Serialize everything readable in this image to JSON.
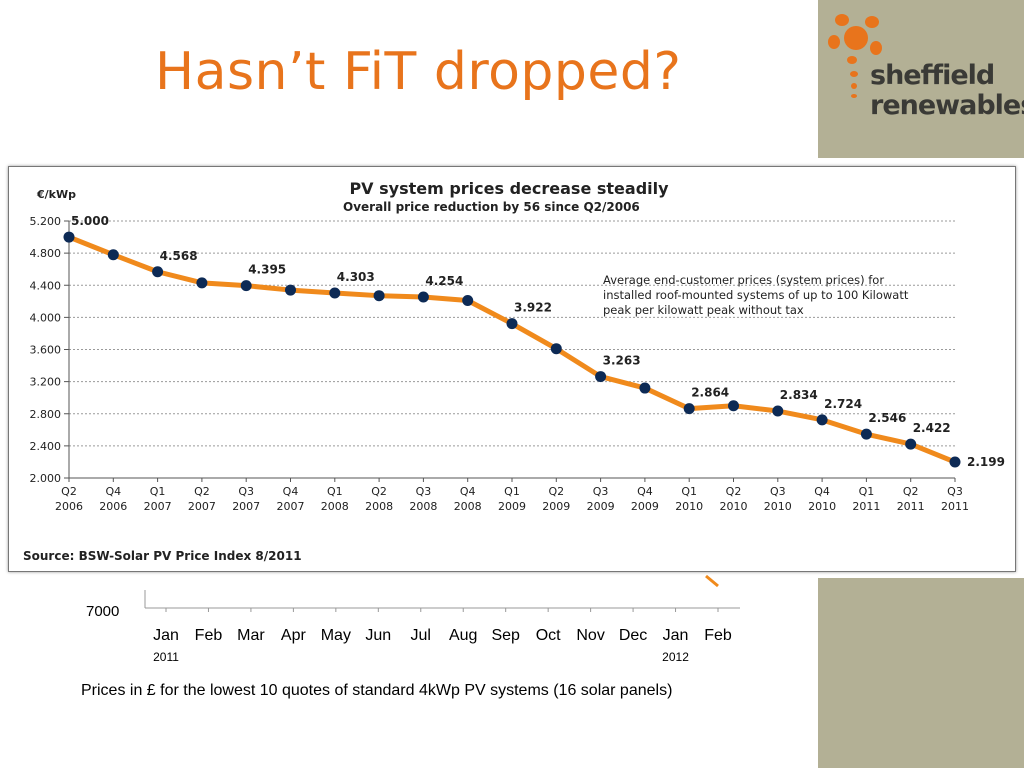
{
  "slide": {
    "title": "Hasn’t FiT dropped?",
    "accent_color": "#e8741c"
  },
  "logo": {
    "line1": "sheffield",
    "line2": "renewables",
    "icon": "sun-flower-icon",
    "icon_color": "#e8741c"
  },
  "chart_data": [
    {
      "type": "line",
      "title": "PV system prices decrease steadily",
      "subtitle": "Overall price reduction by 56  since Q2/2006",
      "ylabel": "€/kWp",
      "xlabel": "",
      "ylim": [
        2.0,
        5.2
      ],
      "yticks": [
        "2.000",
        "2.400",
        "2.800",
        "3.200",
        "3.600",
        "4.000",
        "4.400",
        "4.800",
        "5.200"
      ],
      "grid": true,
      "categories": [
        [
          "Q2",
          "2006"
        ],
        [
          "Q4",
          "2006"
        ],
        [
          "Q1",
          "2007"
        ],
        [
          "Q2",
          "2007"
        ],
        [
          "Q3",
          "2007"
        ],
        [
          "Q4",
          "2007"
        ],
        [
          "Q1",
          "2008"
        ],
        [
          "Q2",
          "2008"
        ],
        [
          "Q3",
          "2008"
        ],
        [
          "Q4",
          "2008"
        ],
        [
          "Q1",
          "2009"
        ],
        [
          "Q2",
          "2009"
        ],
        [
          "Q3",
          "2009"
        ],
        [
          "Q4",
          "2009"
        ],
        [
          "Q1",
          "2010"
        ],
        [
          "Q2",
          "2010"
        ],
        [
          "Q3",
          "2010"
        ],
        [
          "Q4",
          "2010"
        ],
        [
          "Q1",
          "2011"
        ],
        [
          "Q2",
          "2011"
        ],
        [
          "Q3",
          "2011"
        ]
      ],
      "series": [
        {
          "values": [
            5.0,
            4.78,
            4.568,
            4.43,
            4.395,
            4.34,
            4.303,
            4.27,
            4.254,
            4.21,
            3.922,
            3.61,
            3.263,
            3.12,
            2.864,
            2.9,
            2.834,
            2.724,
            2.546,
            2.422,
            2.199
          ],
          "color": "#f08a1c",
          "marker_color": "#0d2a55"
        }
      ],
      "data_labels": [
        {
          "index": 0,
          "text": "5.000"
        },
        {
          "index": 2,
          "text": "4.568"
        },
        {
          "index": 4,
          "text": "4.395"
        },
        {
          "index": 6,
          "text": "4.303"
        },
        {
          "index": 8,
          "text": "4.254"
        },
        {
          "index": 10,
          "text": "3.922"
        },
        {
          "index": 12,
          "text": "3.263"
        },
        {
          "index": 14,
          "text": "2.864"
        },
        {
          "index": 16,
          "text": "2.834"
        },
        {
          "index": 17,
          "text": "2.724"
        },
        {
          "index": 18,
          "text": "2.546"
        },
        {
          "index": 19,
          "text": "2.422"
        },
        {
          "index": 20,
          "text": "2.199"
        }
      ],
      "annotation": [
        "Average end-customer prices (system prices) for",
        "installed roof-mounted systems of up to 100 Kilowatt",
        "peak per kilowatt peak without tax"
      ],
      "source": "Source: BSW-Solar  PV Price Index 8/2011"
    },
    {
      "type": "line",
      "title": "",
      "ytick_visible": "7000",
      "categories": [
        "Jan",
        "Feb",
        "Mar",
        "Apr",
        "May",
        "Jun",
        "Jul",
        "Aug",
        "Sep",
        "Oct",
        "Nov",
        "Dec",
        "Jan",
        "Feb"
      ],
      "year_labels": [
        {
          "index": 0,
          "text": "2011"
        },
        {
          "index": 12,
          "text": "2012"
        }
      ],
      "caption": "Prices in £ for the lowest 10 quotes of standard 4kWp PV systems (16 solar panels)",
      "line_color": "#f08a1c"
    }
  ]
}
